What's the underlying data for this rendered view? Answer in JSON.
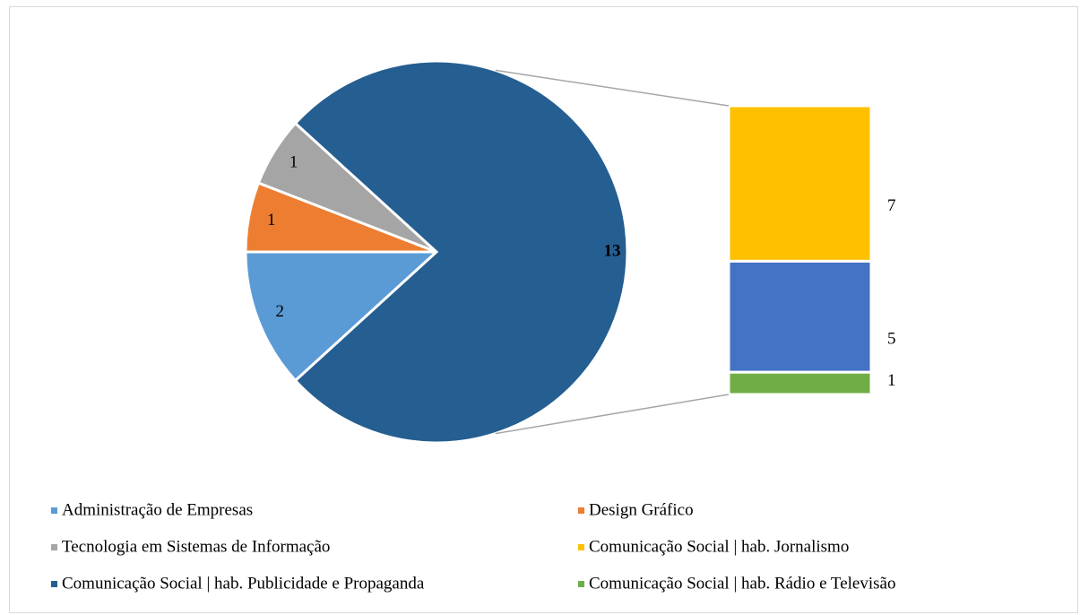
{
  "chart_data": {
    "type": "pie-of-bar",
    "categories": [
      "Administração de Empresas",
      "Design Gráfico",
      "Tecnologia em Sistemas de Informação",
      "Comunicação Social | hab. Jornalismo",
      "Comunicação Social | hab. Publicidade e Propaganda",
      "Comunicação Social | hab. Rádio e Televisão"
    ],
    "values": [
      2,
      1,
      1,
      7,
      5,
      1
    ],
    "colors": [
      "#5b9bd5",
      "#ed7d31",
      "#a5a5a5",
      "#ffc000",
      "#255e91",
      "#70ad47"
    ],
    "bar_colors": [
      "#ffc000",
      "#4472c4",
      "#70ad47"
    ],
    "other_value": 13,
    "other_color": "#255e91"
  }
}
